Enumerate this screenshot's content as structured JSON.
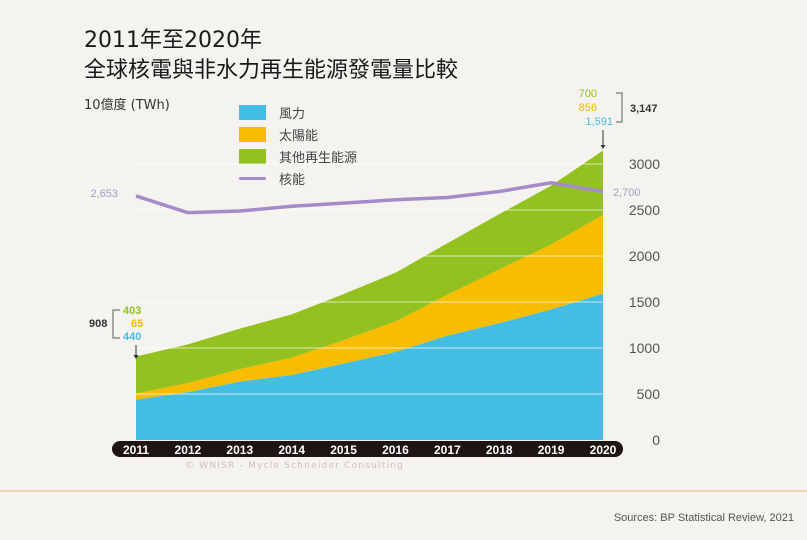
{
  "header": {
    "title_line1": "2011年至2020年",
    "title_line2": "全球核電與非水力再生能源發電量比較",
    "unit_label": "10億度 (TWh)"
  },
  "legend": [
    {
      "label": "風力",
      "color": "#44bde3",
      "kind": "area"
    },
    {
      "label": "太陽能",
      "color": "#f8bd00",
      "kind": "area"
    },
    {
      "label": "其他再生能源",
      "color": "#93c11f",
      "kind": "area"
    },
    {
      "label": "核能",
      "color": "#a58bc9",
      "kind": "line"
    }
  ],
  "chart_data": {
    "type": "area",
    "title": "2011年至2020年 全球核電與非水力再生能源發電量比較",
    "ylabel": "10億度 (TWh)",
    "xlabel": "",
    "x": [
      "2011",
      "2012",
      "2013",
      "2014",
      "2015",
      "2016",
      "2017",
      "2018",
      "2019",
      "2020"
    ],
    "ylim": [
      0,
      3200
    ],
    "yticks": [
      0,
      500,
      1000,
      1500,
      2000,
      2500,
      3000
    ],
    "grid": true,
    "legend_position": "top-left",
    "stacked": true,
    "series": [
      {
        "name": "風力",
        "color": "#44bde3",
        "values": [
          440,
          520,
          635,
          706,
          831,
          958,
          1134,
          1270,
          1420,
          1591
        ]
      },
      {
        "name": "太陽能",
        "color": "#f8bd00",
        "values": [
          65,
          100,
          135,
          190,
          255,
          330,
          445,
          585,
          705,
          856
        ]
      },
      {
        "name": "其他再生能源",
        "color": "#93c11f",
        "values": [
          403,
          420,
          440,
          470,
          500,
          530,
          560,
          600,
          640,
          700
        ]
      }
    ],
    "line_series": [
      {
        "name": "核能",
        "color": "#a58bc9",
        "values": [
          2653,
          2471,
          2489,
          2541,
          2575,
          2612,
          2636,
          2701,
          2796,
          2700
        ]
      }
    ],
    "annotations": {
      "start": {
        "total": "908",
        "other": "403",
        "solar": "65",
        "wind": "440",
        "nuclear": "2,653"
      },
      "end": {
        "total": "3,147",
        "other": "700",
        "solar": "856",
        "wind": "1,591",
        "nuclear": "2,700"
      }
    }
  },
  "footer": {
    "credit": "© WNISR - Mycle Schneider Consulting",
    "source": "Sources: BP Statistical Review, 2021"
  }
}
